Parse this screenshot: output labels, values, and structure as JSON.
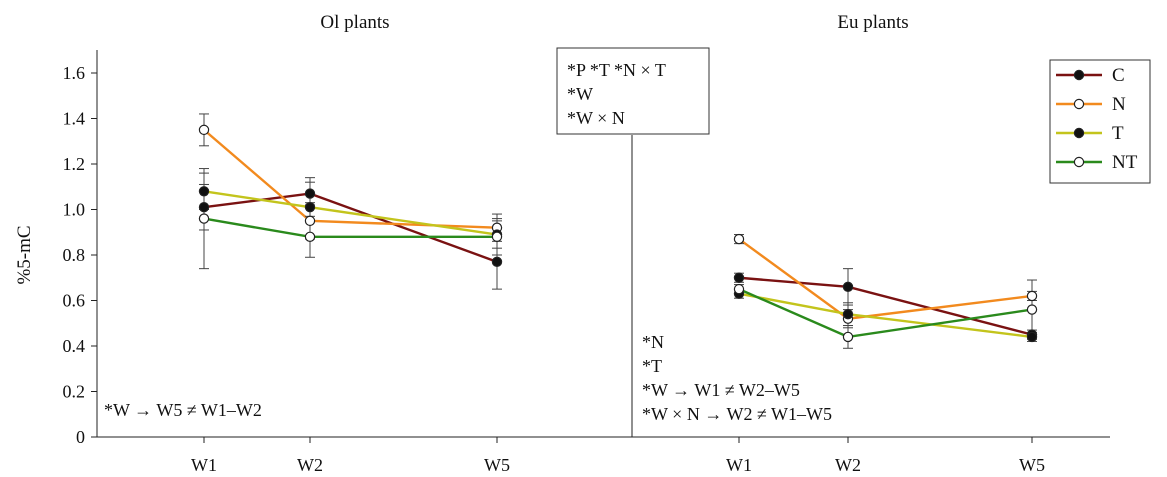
{
  "chart_data": {
    "type": "line",
    "ylabel": "%5-mC",
    "ylim": [
      0,
      1.6
    ],
    "yticks": [
      "0",
      "0.2",
      "0.4",
      "0.6",
      "0.8",
      "1.0",
      "1.2",
      "1.4",
      "1.6"
    ],
    "categories": [
      "W1",
      "W2",
      "W5"
    ],
    "x_positions": [
      1,
      2,
      5
    ],
    "legend_position": "top-right",
    "series_styles": [
      {
        "name": "C",
        "color": "#7a1212",
        "marker": "filled"
      },
      {
        "name": "N",
        "color": "#f28a1e",
        "marker": "open"
      },
      {
        "name": "T",
        "color": "#c3c41c",
        "marker": "filled"
      },
      {
        "name": "NT",
        "color": "#2a8a1c",
        "marker": "open"
      }
    ],
    "panels": [
      {
        "title": "Ol plants",
        "series": [
          {
            "name": "C",
            "values": [
              1.01,
              1.07,
              0.77
            ],
            "errors": [
              0.1,
              0.05,
              0.12
            ]
          },
          {
            "name": "N",
            "values": [
              1.35,
              0.95,
              0.92
            ],
            "errors": [
              0.07,
              0.08,
              0.06
            ]
          },
          {
            "name": "T",
            "values": [
              1.08,
              1.01,
              0.89
            ],
            "errors": [
              0.08,
              0.13,
              0.06
            ]
          },
          {
            "name": "NT",
            "values": [
              0.96,
              0.88,
              0.88
            ],
            "errors": [
              0.22,
              0.09,
              0.08
            ]
          }
        ],
        "annotations": [
          "*W → W5 ≠ W1–W2"
        ]
      },
      {
        "title": "Eu plants",
        "series": [
          {
            "name": "C",
            "values": [
              0.7,
              0.66,
              0.45
            ],
            "errors": [
              0.02,
              0.08,
              0.02
            ]
          },
          {
            "name": "N",
            "values": [
              0.87,
              0.52,
              0.62
            ],
            "errors": [
              0.02,
              0.04,
              0.02
            ]
          },
          {
            "name": "T",
            "values": [
              0.63,
              0.54,
              0.44
            ],
            "errors": [
              0.02,
              0.05,
              0.02
            ]
          },
          {
            "name": "NT",
            "values": [
              0.65,
              0.44,
              0.56
            ],
            "errors": [
              0.02,
              0.05,
              0.13
            ]
          }
        ],
        "annotations": [
          "*N",
          "*T",
          "*W → W1 ≠ W2–W5",
          "*W × N → W2 ≠ W1–W5"
        ]
      }
    ],
    "stats_box": [
      "*P  *T  *N × T",
      "*W",
      "*W × N"
    ]
  }
}
